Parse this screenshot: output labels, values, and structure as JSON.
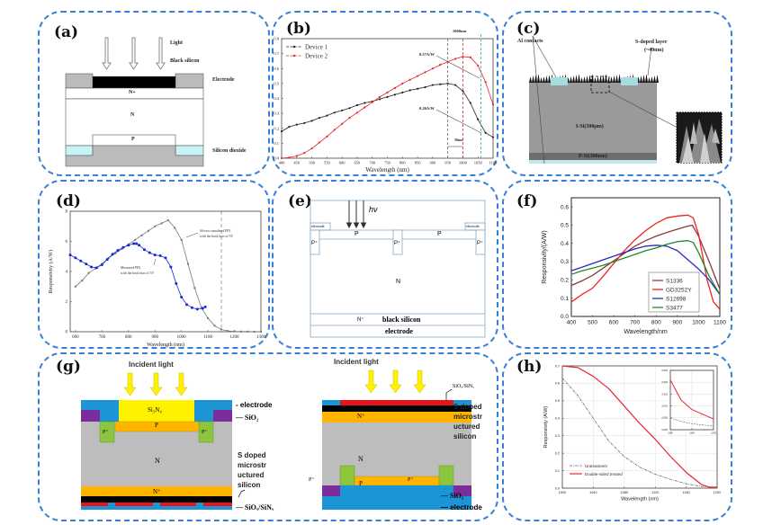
{
  "panels": {
    "a": {
      "label": "(a)",
      "light": "Light",
      "black_silicon": "Black silicon",
      "electrode": "Electrode",
      "n_plus": "N+",
      "n": "N",
      "p": "P",
      "silicon_dioxide": "Silicon dioxide"
    },
    "b": {
      "label": "(b)",
      "annotation_1060": "1060nm",
      "annotation_057": "0.57A/W",
      "annotation_026": "0.26A/W",
      "annotation_50nm": "50nm"
    },
    "c": {
      "label": "(c)",
      "al_contacts": "Al contacts",
      "s_doped": "S-doped layer",
      "s_doped_thickness": "(~40nm)",
      "i_si": "I-Si(300μm)",
      "p_si": "P-Si(300nm)"
    },
    "d": {
      "label": "(d)",
      "annotation_sim_1": "Silvaco simulated PIN",
      "annotation_sim_2": "with the back bias of 5V",
      "annotation_meas_1": "Measured PIN",
      "annotation_meas_2": "with the back bias of 5V"
    },
    "e": {
      "label": "(e)",
      "hv": "hν",
      "electrode_left": "electrode",
      "electrode_right": "electrode",
      "p_left": "P",
      "p_right": "P",
      "p_plus": "P⁺",
      "n": "N",
      "n_plus": "N⁺",
      "black_silicon": "black silicon",
      "electrode_bottom": "electrode"
    },
    "f": {
      "label": "(f)"
    },
    "g": {
      "label": "(g)",
      "incident_light_left": "Incident light",
      "incident_light_right": "Incident light",
      "si3n4": "Si₃N₄",
      "electrode": "- electrode",
      "sio2": "— SiO₂",
      "p": "P",
      "p_plus": "P⁺",
      "n": "N",
      "n_plus": "N⁺",
      "s_doped_1": "S doped",
      "s_doped_2": "microstr",
      "s_doped_3": "uctured",
      "s_doped_4": "silicon",
      "sioxsinx": "— SiOₓ/SiNₓ",
      "right_sioxsinx": "SiOₓ/SiNₓ",
      "right_s_doped_1": "S doped",
      "right_s_doped_2": "microstr",
      "right_s_doped_3": "uctured",
      "right_s_doped_4": "silicon",
      "right_sio2": "— SiO₂",
      "right_electrode": "— electrode"
    },
    "h": {
      "label": "(h)"
    }
  },
  "colors": {
    "border": "#3a7fd6",
    "device1": "#222222",
    "device2": "#e8262c",
    "s1336": "#8b3a3a",
    "gd3252y": "#ee2222",
    "s12698": "#2a2ab8",
    "s3477": "#1f8a2a",
    "electrode_blue": "#1b95d6",
    "sio2_purple": "#7b2d9c",
    "si3n4_yellow": "#fff200",
    "p_orange": "#ffb400",
    "pplus_green": "#8cc63f",
    "silicon_gray": "#bdbdbd",
    "sioxsinx_red": "#e8141c"
  },
  "chart_data": [
    {
      "id": "b",
      "type": "line",
      "title": "",
      "xlabel": "Wavelength (nm)",
      "ylabel": "Responsivity(A/W)",
      "xlim": [
        400,
        1100
      ],
      "ylim": [
        0.0,
        0.8
      ],
      "xticks": [
        400,
        450,
        500,
        550,
        600,
        650,
        700,
        750,
        800,
        850,
        900,
        950,
        1000,
        1050,
        1100
      ],
      "yticks": [
        0.0,
        0.1,
        0.2,
        0.3,
        0.4,
        0.5,
        0.6,
        0.7,
        0.8
      ],
      "legend": "top-left",
      "series": [
        {
          "name": "Device 1",
          "x": [
            400,
            425,
            450,
            475,
            500,
            525,
            550,
            575,
            600,
            625,
            650,
            675,
            700,
            725,
            750,
            775,
            800,
            825,
            850,
            875,
            900,
            925,
            950,
            975,
            1000,
            1025,
            1050,
            1075,
            1100
          ],
          "y": [
            0.18,
            0.21,
            0.225,
            0.235,
            0.25,
            0.27,
            0.285,
            0.305,
            0.32,
            0.335,
            0.355,
            0.37,
            0.38,
            0.395,
            0.41,
            0.425,
            0.44,
            0.455,
            0.465,
            0.475,
            0.49,
            0.495,
            0.5,
            0.49,
            0.45,
            0.37,
            0.26,
            0.17,
            0.14
          ]
        },
        {
          "name": "Device 2",
          "x": [
            400,
            425,
            450,
            475,
            500,
            525,
            550,
            575,
            600,
            625,
            650,
            675,
            700,
            725,
            750,
            775,
            800,
            825,
            850,
            875,
            900,
            925,
            950,
            975,
            1000,
            1025,
            1050,
            1075,
            1100
          ],
          "y": [
            0.0,
            0.005,
            0.015,
            0.035,
            0.065,
            0.105,
            0.145,
            0.19,
            0.23,
            0.27,
            0.305,
            0.34,
            0.375,
            0.41,
            0.44,
            0.47,
            0.5,
            0.525,
            0.55,
            0.575,
            0.6,
            0.625,
            0.645,
            0.665,
            0.68,
            0.675,
            0.62,
            0.51,
            0.36
          ]
        }
      ],
      "vlines": [
        950,
        1000,
        1060,
        1100
      ]
    },
    {
      "id": "d",
      "type": "line",
      "xlabel": "Wavelength (nm)",
      "ylabel": "Responsivity (A/W)",
      "xlim": [
        580,
        1300
      ],
      "ylim": [
        0,
        8
      ],
      "xticks": [
        600,
        700,
        800,
        900,
        1000,
        1100,
        1200,
        1300
      ],
      "yticks": [
        0,
        2,
        4,
        6,
        8
      ],
      "series": [
        {
          "name": "Silvaco simulated PIN with the back bias of 5V",
          "x": [
            600,
            625,
            650,
            675,
            700,
            725,
            750,
            775,
            800,
            825,
            850,
            875,
            900,
            925,
            950,
            975,
            1000,
            1025,
            1050,
            1075,
            1100,
            1125,
            1150,
            1175,
            1200,
            1225,
            1250,
            1275,
            1300
          ],
          "y": [
            3.0,
            3.4,
            3.9,
            4.2,
            4.5,
            4.9,
            5.2,
            5.5,
            5.8,
            6.1,
            6.4,
            6.7,
            7.0,
            7.2,
            7.4,
            6.9,
            6.1,
            4.5,
            2.9,
            1.6,
            0.9,
            0.4,
            0.15,
            0.05,
            0.02,
            0.01,
            0.01,
            0.0,
            0.0
          ]
        },
        {
          "name": "Measured PIN with the back bias of 5V",
          "x": [
            580,
            600,
            620,
            640,
            660,
            680,
            700,
            720,
            740,
            760,
            780,
            800,
            820,
            830,
            840,
            860,
            880,
            900,
            920,
            940,
            960,
            980,
            1000,
            1020,
            1040,
            1060,
            1080,
            1090
          ],
          "y": [
            5.1,
            4.9,
            4.7,
            4.5,
            4.3,
            4.25,
            4.45,
            4.8,
            5.15,
            5.4,
            5.6,
            5.75,
            5.85,
            5.85,
            5.75,
            5.45,
            5.25,
            5.1,
            5.05,
            4.9,
            4.3,
            3.2,
            2.3,
            1.8,
            1.6,
            1.5,
            1.55,
            1.65
          ]
        }
      ]
    },
    {
      "id": "f",
      "type": "line",
      "xlabel": "Wavelength/nm",
      "ylabel": "Responsivity/(A/W)",
      "xlim": [
        400,
        1100
      ],
      "ylim": [
        0.0,
        0.65
      ],
      "xticks": [
        400,
        500,
        600,
        700,
        800,
        900,
        1000,
        1100
      ],
      "yticks": [
        0.0,
        0.1,
        0.2,
        0.3,
        0.4,
        0.5,
        0.6
      ],
      "legend": "bottom-right",
      "series": [
        {
          "name": "S1336",
          "x": [
            400,
            450,
            500,
            550,
            600,
            650,
            700,
            750,
            800,
            850,
            900,
            950,
            970,
            1000,
            1050,
            1100
          ],
          "y": [
            0.17,
            0.195,
            0.225,
            0.265,
            0.305,
            0.345,
            0.385,
            0.415,
            0.44,
            0.46,
            0.478,
            0.495,
            0.5,
            0.44,
            0.3,
            0.15
          ]
        },
        {
          "name": "GD3252Y",
          "x": [
            400,
            450,
            500,
            550,
            600,
            650,
            700,
            750,
            800,
            850,
            900,
            950,
            975,
            1000,
            1040,
            1070,
            1100
          ],
          "y": [
            0.08,
            0.12,
            0.155,
            0.22,
            0.29,
            0.36,
            0.42,
            0.47,
            0.51,
            0.54,
            0.55,
            0.555,
            0.54,
            0.45,
            0.2,
            0.08,
            0.04
          ]
        },
        {
          "name": "S12698",
          "x": [
            400,
            450,
            500,
            550,
            600,
            650,
            700,
            750,
            800,
            850,
            900,
            950,
            1000,
            1050,
            1100
          ],
          "y": [
            0.25,
            0.27,
            0.29,
            0.31,
            0.33,
            0.35,
            0.37,
            0.385,
            0.39,
            0.385,
            0.36,
            0.31,
            0.26,
            0.2,
            0.12
          ]
        },
        {
          "name": "S3477",
          "x": [
            400,
            450,
            500,
            550,
            600,
            650,
            700,
            750,
            800,
            850,
            900,
            950,
            975,
            1000,
            1050,
            1100
          ],
          "y": [
            0.23,
            0.25,
            0.265,
            0.28,
            0.3,
            0.32,
            0.34,
            0.36,
            0.375,
            0.395,
            0.41,
            0.415,
            0.405,
            0.35,
            0.22,
            0.12
          ]
        }
      ]
    },
    {
      "id": "h",
      "type": "line",
      "xlabel": "Wavelength (nm)",
      "ylabel": "Responsivity (A/W)",
      "xlim": [
        1000,
        1200
      ],
      "ylim": [
        0.0,
        0.7
      ],
      "xticks": [
        1000,
        1040,
        1080,
        1120,
        1160,
        1200
      ],
      "yticks": [
        0.0,
        0.1,
        0.2,
        0.3,
        0.4,
        0.5,
        0.6,
        0.7
      ],
      "legend": "bottom-left",
      "grid": true,
      "series": [
        {
          "name": "Untreatment",
          "x": [
            1000,
            1020,
            1040,
            1060,
            1080,
            1100,
            1120,
            1140,
            1160,
            1180,
            1200
          ],
          "y": [
            0.63,
            0.53,
            0.4,
            0.27,
            0.18,
            0.12,
            0.08,
            0.05,
            0.025,
            0.01,
            0.005
          ]
        },
        {
          "name": "Double-sided treated",
          "x": [
            1000,
            1020,
            1040,
            1060,
            1080,
            1100,
            1120,
            1140,
            1160,
            1180,
            1190,
            1200
          ],
          "y": [
            0.7,
            0.69,
            0.64,
            0.57,
            0.47,
            0.37,
            0.28,
            0.18,
            0.09,
            0.02,
            0.005,
            0.005
          ]
        }
      ],
      "inset": {
        "xlim": [
          1180,
          1200
        ],
        "ylim": [
          0.0,
          0.025
        ],
        "xticks": [
          1180,
          1190,
          1200
        ],
        "yticks": [
          0.0,
          0.005,
          0.01,
          0.015,
          0.02,
          0.025
        ],
        "series": [
          {
            "name": "Untreatment",
            "x": [
              1180,
              1185,
              1190,
              1195,
              1200
            ],
            "y": [
              0.005,
              0.0035,
              0.0025,
              0.002,
              0.0015
            ]
          },
          {
            "name": "Double-sided treated",
            "x": [
              1180,
              1185,
              1190,
              1195,
              1200
            ],
            "y": [
              0.021,
              0.0125,
              0.0085,
              0.0065,
              0.0045
            ]
          }
        ]
      }
    }
  ]
}
